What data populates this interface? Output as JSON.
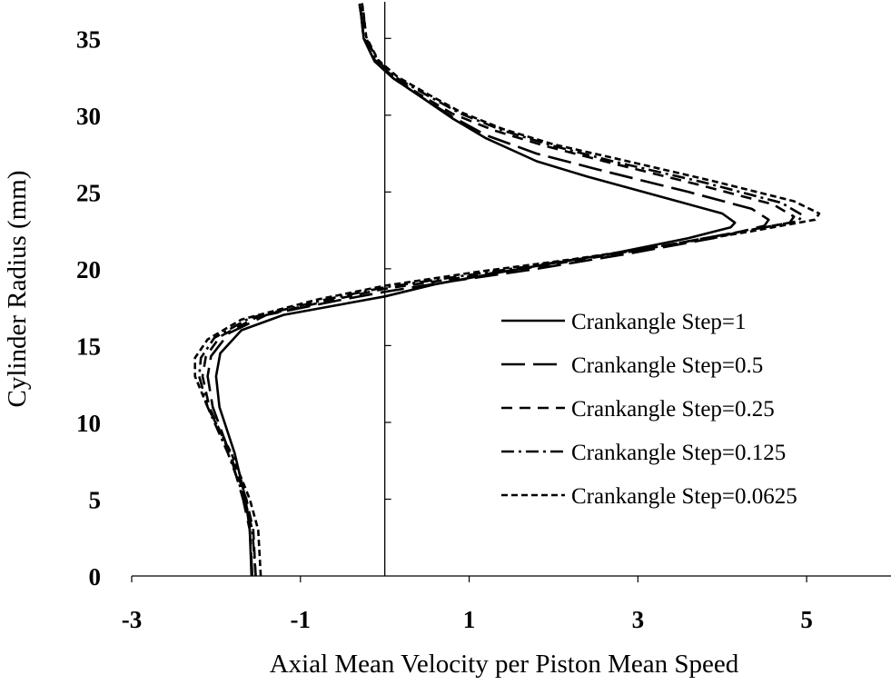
{
  "chart_data": {
    "type": "line",
    "title": "",
    "xlabel": "Axial Mean Velocity per Piston Mean Speed",
    "ylabel": "Cylinder Radius (mm)",
    "xlim": [
      -3,
      6
    ],
    "ylim": [
      0,
      37.5
    ],
    "xticks": [
      -3,
      -1,
      1,
      3,
      5
    ],
    "yticks": [
      0,
      5,
      10,
      15,
      20,
      25,
      30,
      35
    ],
    "grid": false,
    "legend_position": "right",
    "series": [
      {
        "name": "Crankangle Step=1",
        "color": "#000000",
        "dash": "solid",
        "points": [
          [
            -1.58,
            0
          ],
          [
            -1.6,
            3
          ],
          [
            -1.65,
            5
          ],
          [
            -1.78,
            8
          ],
          [
            -1.96,
            11
          ],
          [
            -2.0,
            13
          ],
          [
            -1.95,
            14.5
          ],
          [
            -1.7,
            16
          ],
          [
            -1.2,
            17
          ],
          [
            -0.3,
            17.9
          ],
          [
            0,
            18.2
          ],
          [
            0.6,
            19
          ],
          [
            1.6,
            20
          ],
          [
            2.7,
            21
          ],
          [
            3.6,
            22
          ],
          [
            4.1,
            22.7
          ],
          [
            4.15,
            23
          ],
          [
            4.0,
            23.6
          ],
          [
            3.4,
            24.5
          ],
          [
            2.4,
            26
          ],
          [
            1.8,
            27
          ],
          [
            1.2,
            28.5
          ],
          [
            0.8,
            29.8
          ],
          [
            0.4,
            31.3
          ],
          [
            0.1,
            32.4
          ],
          [
            -0.12,
            33.5
          ],
          [
            -0.25,
            35
          ],
          [
            -0.28,
            36.5
          ],
          [
            -0.3,
            37.2
          ]
        ]
      },
      {
        "name": "Crankangle Step=0.5",
        "color": "#000000",
        "dash": "long-dash",
        "points": [
          [
            -1.57,
            0
          ],
          [
            -1.6,
            3
          ],
          [
            -1.68,
            5
          ],
          [
            -1.84,
            8
          ],
          [
            -2.04,
            11
          ],
          [
            -2.1,
            13
          ],
          [
            -2.06,
            14.3
          ],
          [
            -1.85,
            15.8
          ],
          [
            -1.4,
            17
          ],
          [
            -0.5,
            18
          ],
          [
            0,
            18.5
          ],
          [
            0.8,
            19.2
          ],
          [
            1.8,
            20
          ],
          [
            2.9,
            21
          ],
          [
            3.9,
            22
          ],
          [
            4.5,
            22.8
          ],
          [
            4.55,
            23.2
          ],
          [
            4.35,
            23.9
          ],
          [
            3.6,
            25
          ],
          [
            2.5,
            26.5
          ],
          [
            1.8,
            27.5
          ],
          [
            1.2,
            28.7
          ],
          [
            0.8,
            29.9
          ],
          [
            0.4,
            31.3
          ],
          [
            0.1,
            32.4
          ],
          [
            -0.12,
            33.5
          ],
          [
            -0.25,
            35
          ],
          [
            -0.28,
            36.5
          ],
          [
            -0.3,
            37.3
          ]
        ]
      },
      {
        "name": "Crankangle Step=0.25",
        "color": "#000000",
        "dash": "dash",
        "points": [
          [
            -1.53,
            0
          ],
          [
            -1.56,
            3
          ],
          [
            -1.64,
            5
          ],
          [
            -1.84,
            8
          ],
          [
            -2.08,
            11
          ],
          [
            -2.16,
            13
          ],
          [
            -2.12,
            14.3
          ],
          [
            -1.95,
            15.6
          ],
          [
            -1.5,
            16.9
          ],
          [
            -0.6,
            18
          ],
          [
            0,
            18.7
          ],
          [
            1.0,
            19.5
          ],
          [
            2.0,
            20.3
          ],
          [
            3.0,
            21.2
          ],
          [
            4.0,
            22.2
          ],
          [
            4.8,
            23
          ],
          [
            4.85,
            23.4
          ],
          [
            4.6,
            24.2
          ],
          [
            3.7,
            25.5
          ],
          [
            2.6,
            27
          ],
          [
            1.9,
            28
          ],
          [
            1.3,
            29
          ],
          [
            0.8,
            30.1
          ],
          [
            0.4,
            31.4
          ],
          [
            0.1,
            32.5
          ],
          [
            -0.12,
            33.6
          ],
          [
            -0.25,
            35.1
          ],
          [
            -0.28,
            36.6
          ],
          [
            -0.3,
            37.3
          ]
        ]
      },
      {
        "name": "Crankangle Step=0.125",
        "color": "#000000",
        "dash": "dash-dot",
        "points": [
          [
            -1.53,
            0
          ],
          [
            -1.57,
            3
          ],
          [
            -1.66,
            5
          ],
          [
            -1.86,
            8
          ],
          [
            -2.1,
            11
          ],
          [
            -2.2,
            13
          ],
          [
            -2.18,
            14.2
          ],
          [
            -2.02,
            15.5
          ],
          [
            -1.6,
            16.8
          ],
          [
            -0.7,
            18
          ],
          [
            0,
            18.8
          ],
          [
            1.0,
            19.6
          ],
          [
            2.0,
            20.4
          ],
          [
            3.1,
            21.3
          ],
          [
            4.1,
            22.3
          ],
          [
            4.9,
            23.1
          ],
          [
            4.95,
            23.5
          ],
          [
            4.7,
            24.3
          ],
          [
            3.8,
            25.6
          ],
          [
            2.7,
            27
          ],
          [
            2.0,
            28
          ],
          [
            1.4,
            29
          ],
          [
            0.9,
            30.1
          ],
          [
            0.5,
            31.3
          ],
          [
            0.15,
            32.4
          ],
          [
            -0.08,
            33.5
          ],
          [
            -0.22,
            35
          ],
          [
            -0.25,
            36.5
          ],
          [
            -0.27,
            37.2
          ]
        ]
      },
      {
        "name": "Crankangle Step=0.0625",
        "color": "#000000",
        "dash": "short-dash",
        "points": [
          [
            -1.47,
            0
          ],
          [
            -1.5,
            3
          ],
          [
            -1.6,
            5
          ],
          [
            -1.82,
            8
          ],
          [
            -2.1,
            11
          ],
          [
            -2.25,
            13
          ],
          [
            -2.25,
            14.2
          ],
          [
            -2.1,
            15.4
          ],
          [
            -1.7,
            16.7
          ],
          [
            -0.8,
            18
          ],
          [
            0,
            18.9
          ],
          [
            1.1,
            19.8
          ],
          [
            2.2,
            20.6
          ],
          [
            3.3,
            21.5
          ],
          [
            4.3,
            22.4
          ],
          [
            5.1,
            23.2
          ],
          [
            5.15,
            23.6
          ],
          [
            4.85,
            24.4
          ],
          [
            3.9,
            25.7
          ],
          [
            2.8,
            27.1
          ],
          [
            2.0,
            28.1
          ],
          [
            1.4,
            29.1
          ],
          [
            0.9,
            30.2
          ],
          [
            0.5,
            31.4
          ],
          [
            0.15,
            32.5
          ],
          [
            -0.08,
            33.6
          ],
          [
            -0.22,
            35.1
          ],
          [
            -0.25,
            36.6
          ],
          [
            -0.27,
            37.3
          ]
        ]
      }
    ]
  }
}
